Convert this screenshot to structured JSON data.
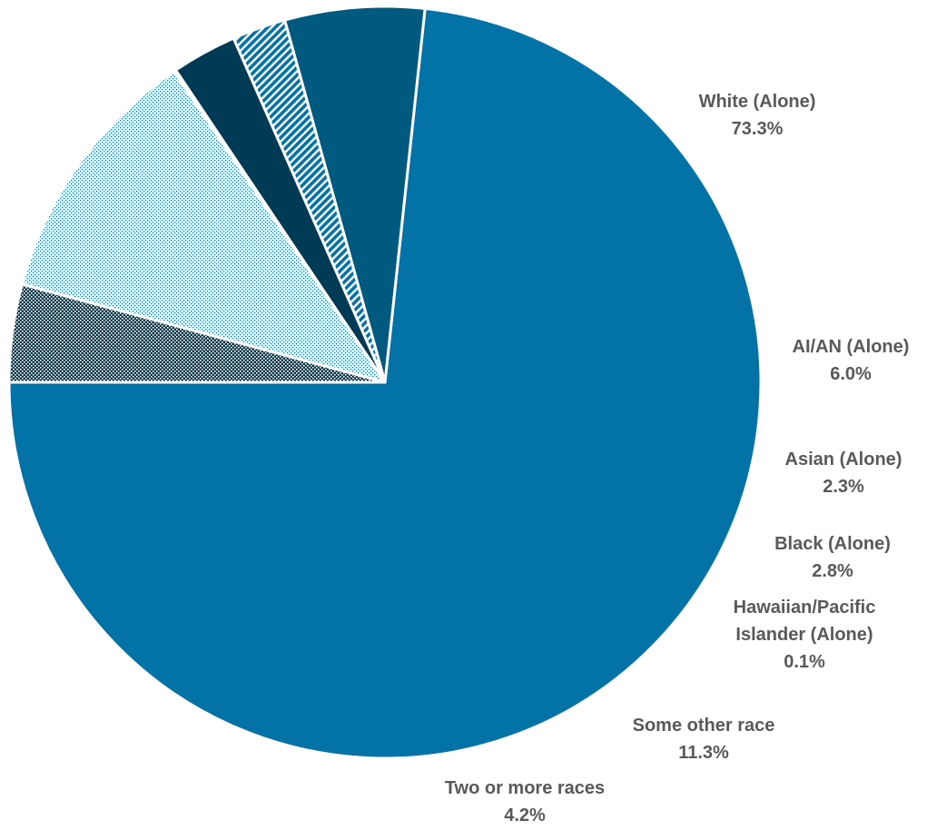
{
  "chart_data": {
    "type": "pie",
    "title": "",
    "start_angle_deg": 180,
    "direction": "counterclockwise",
    "slices": [
      {
        "label": [
          "White (Alone)"
        ],
        "value": 73.3,
        "value_text": "73.3%",
        "color": "#0272A7",
        "pattern": "solid"
      },
      {
        "label": [
          "AI/AN (Alone)"
        ],
        "value": 6.0,
        "value_text": "6.0%",
        "color": "#005A80",
        "pattern": "solid"
      },
      {
        "label": [
          "Asian (Alone)"
        ],
        "value": 2.3,
        "value_text": "2.3%",
        "color": "#0272A7",
        "pattern": "diagonal-stripes"
      },
      {
        "label": [
          "Black (Alone)"
        ],
        "value": 2.8,
        "value_text": "2.8%",
        "color": "#003A54",
        "pattern": "solid"
      },
      {
        "label": [
          "Hawaiian/Pacific",
          "Islander (Alone)"
        ],
        "value": 0.1,
        "value_text": "0.1%",
        "color": "#0272A7",
        "pattern": "solid"
      },
      {
        "label": [
          "Some other race"
        ],
        "value": 11.3,
        "value_text": "11.3%",
        "color": "#0272A7",
        "pattern": "fine-dots"
      },
      {
        "label": [
          "Two or more races"
        ],
        "value": 4.2,
        "value_text": "4.2%",
        "color": "#003A54",
        "pattern": "dense-dots"
      }
    ],
    "legend": "none",
    "data_labels": "outside"
  }
}
